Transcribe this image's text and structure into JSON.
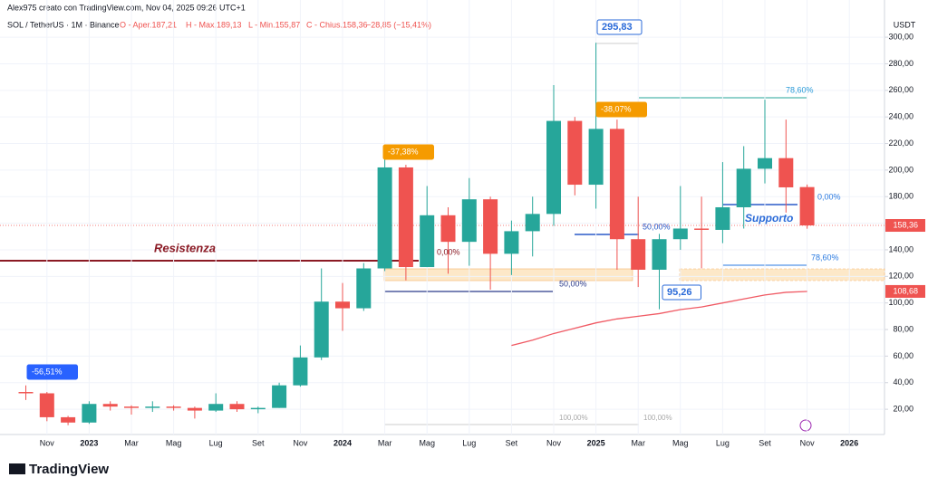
{
  "header": {
    "credit": "Alex975 creato con TradingView.com, Nov 04, 2025 09:26 UTC+1",
    "symbol": "SOL / TetherUS · 1M · Binance",
    "open": "O - Aper.187,21",
    "high": "H - Max.189,13",
    "low": "L - Min.155,87",
    "close": "C - Chius.158,36",
    "change": "−28,85 (−15,41%)"
  },
  "footer": {
    "brand": "TradingView"
  },
  "chart_data": {
    "type": "candlestick",
    "currency": "USDT",
    "categories": [
      null,
      "Nov",
      null,
      "2023",
      null,
      "Mar",
      null,
      "Mag",
      null,
      "Lug",
      null,
      "Set",
      null,
      "Nov",
      null,
      "2024",
      null,
      "Mar",
      null,
      "Mag",
      null,
      "Lug",
      null,
      "Set",
      null,
      "Nov",
      null,
      "2025",
      null,
      "Mar",
      null,
      "Mag",
      null,
      "Lug",
      null,
      "Set",
      null,
      "Nov",
      null,
      "2026"
    ],
    "open": [
      33,
      32,
      14,
      10,
      24,
      22,
      21,
      22,
      21,
      19,
      24,
      20,
      21,
      38,
      59,
      101,
      96,
      126,
      202,
      127,
      166,
      146,
      178,
      137,
      154,
      167,
      237,
      189,
      231,
      148,
      125,
      148,
      156,
      155,
      172,
      201,
      209,
      187.21,
      null,
      null
    ],
    "high": [
      38,
      33,
      15,
      26,
      26,
      23,
      26,
      23,
      22,
      32,
      26,
      22,
      40,
      68,
      126,
      115,
      130,
      210,
      204,
      188,
      172,
      194,
      180,
      162,
      180,
      264,
      240,
      295.83,
      238,
      180,
      152,
      188,
      180,
      206,
      218,
      253,
      238,
      189.13,
      null,
      null
    ],
    "low": [
      27,
      11,
      8,
      9,
      19,
      16,
      18,
      19,
      13,
      18,
      18,
      17,
      21,
      37,
      57,
      79,
      94,
      124,
      117,
      127,
      122,
      128,
      110,
      121,
      135,
      158,
      181,
      171,
      125,
      112,
      95.26,
      140,
      126,
      145,
      156,
      190,
      168,
      155.87,
      null,
      null
    ],
    "close": [
      32,
      14,
      10,
      24,
      22,
      21,
      22,
      21,
      19,
      24,
      20,
      21,
      38,
      59,
      101,
      96,
      126,
      202,
      127,
      166,
      146,
      178,
      137,
      154,
      167,
      237,
      189,
      231,
      148,
      125,
      148,
      156,
      155,
      172,
      201,
      209,
      187,
      158.36,
      null,
      null
    ],
    "up_color": "#26a69a",
    "down_color": "#ef5350",
    "moving_average": {
      "color": "#f05a64",
      "values": [
        null,
        null,
        null,
        null,
        null,
        null,
        null,
        null,
        null,
        null,
        null,
        null,
        null,
        null,
        null,
        null,
        null,
        null,
        null,
        null,
        null,
        null,
        null,
        68,
        72,
        77,
        81,
        85,
        88,
        90,
        92,
        95,
        97,
        100,
        103,
        106,
        108,
        108.68,
        null,
        null
      ]
    },
    "last_price": {
      "value": 158.36,
      "label": "158,36"
    },
    "ma_last": {
      "value": 108.68,
      "label": "108,68"
    },
    "ylim": [
      1,
      328
    ],
    "yticks": [
      {
        "value": 20,
        "label": "20,00"
      },
      {
        "value": 40,
        "label": "40,00"
      },
      {
        "value": 60,
        "label": "60,00"
      },
      {
        "value": 80,
        "label": "80,00"
      },
      {
        "value": 100,
        "label": "100,00"
      },
      {
        "value": 120,
        "label": "120,00"
      },
      {
        "value": 140,
        "label": "140,00"
      },
      {
        "value": 160,
        "label": "160,00"
      },
      {
        "value": 180,
        "label": "180,00"
      },
      {
        "value": 200,
        "label": "200,00"
      },
      {
        "value": 220,
        "label": "220,00"
      },
      {
        "value": 240,
        "label": "240,00"
      },
      {
        "value": 260,
        "label": "260,00"
      },
      {
        "value": 280,
        "label": "280,00"
      },
      {
        "value": 300,
        "label": "300,00"
      }
    ],
    "grid": true,
    "annotations": [
      "Resistenza",
      "Supporto",
      "295,83",
      "95,26",
      "-56,51%",
      "-37,38%",
      "-38,07%",
      "78,60%",
      "78,60%",
      "50,00%",
      "50,00%",
      "0,00%",
      "100,00%",
      "100,00%",
      "0,00%"
    ]
  }
}
